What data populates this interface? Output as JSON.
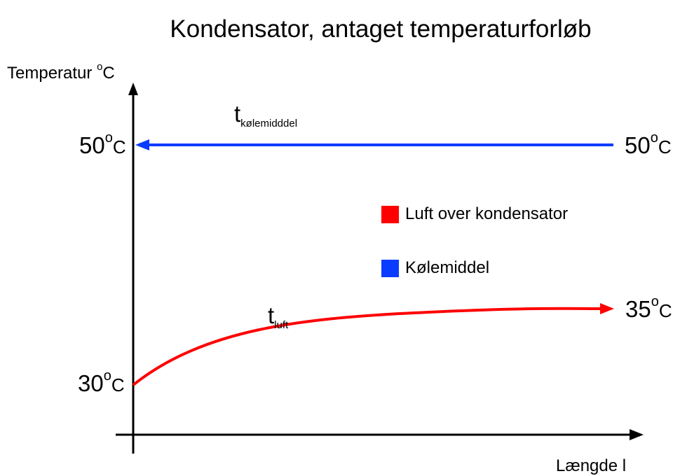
{
  "title": "Kondensator, antaget temperaturforløb",
  "y_axis": {
    "label": "Temperatur",
    "unit_sup": "o",
    "unit": "C"
  },
  "x_axis": {
    "label": "Længde  l"
  },
  "labels": {
    "coolant_left": {
      "value": "50",
      "sup": "o",
      "unit": "C"
    },
    "coolant_right": {
      "value": "50",
      "sup": "o",
      "unit": "C"
    },
    "air_start": {
      "value": "30",
      "sup": "o",
      "unit": "C"
    },
    "air_end": {
      "value": "35",
      "sup": "o",
      "unit": "C"
    }
  },
  "curve_labels": {
    "coolant": {
      "main": "t",
      "sub": "kølemidddel"
    },
    "air": {
      "main": "t",
      "sub": "luft"
    }
  },
  "legend": [
    {
      "label": "Luft over kondensator",
      "color": "#ff0000"
    },
    {
      "label": "Kølemiddel",
      "color": "#0a3cff"
    }
  ],
  "colors": {
    "air": "#ff0000",
    "coolant": "#0a3cff",
    "axis": "#000000"
  }
}
